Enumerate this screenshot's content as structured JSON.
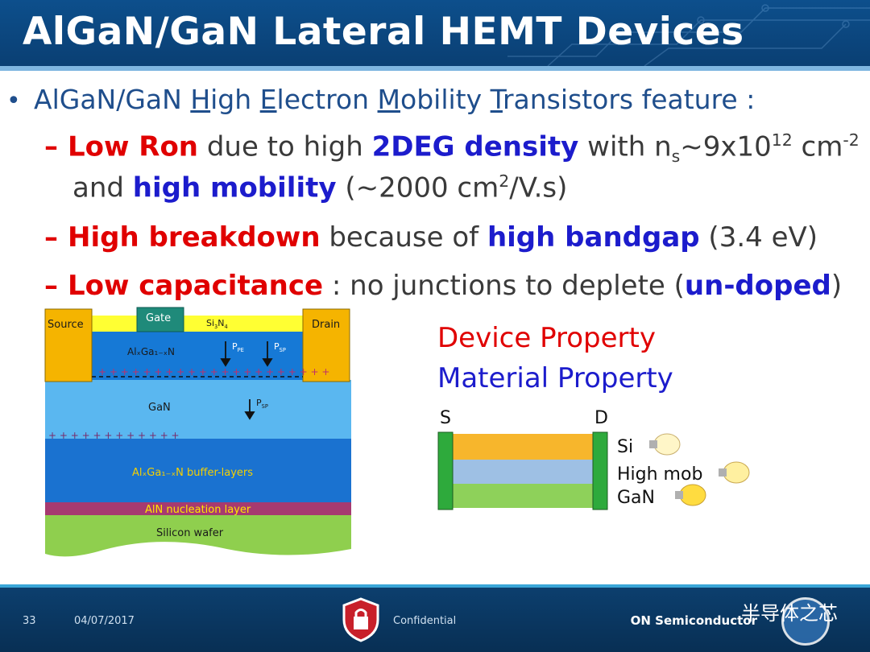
{
  "title": "AlGaN/GaN Lateral HEMT Devices",
  "bullets": {
    "intro_pre": "AlGaN/GaN ",
    "intro_h": "H",
    "intro_igh": "igh ",
    "intro_e": "E",
    "intro_lectron": "lectron ",
    "intro_m": "M",
    "intro_obility": "obility ",
    "intro_t": "T",
    "intro_rest": "ransistors feature :",
    "s1_red": "Low Ron",
    "s1_mid": " due to high ",
    "s1_blue": "2DEG density",
    "s1_with": " with n",
    "s1_sub": "s",
    "s1_tilde": "~9x10",
    "s1_exp": "12",
    "s1_unit": " cm",
    "s1_unitexp": "-2",
    "s1b_and": "and ",
    "s1b_blue": "high mobility",
    "s1b_rest": " (~2000 cm",
    "s1b_exp": "2",
    "s1b_end": "/V.s)",
    "s2_red": "High breakdown",
    "s2_mid": " because of ",
    "s2_blue": "high bandgap",
    "s2_end": " (3.4 eV)",
    "s3_red": "Low capacitance",
    "s3_mid": " : no junctions to deplete (",
    "s3_blue": "un-doped",
    "s3_end": ")",
    "dash": "–",
    "dot": "•"
  },
  "diagram": {
    "source": "Source",
    "gate": "Gate",
    "drain": "Drain",
    "sin": "Si",
    "sin_sub1": "3",
    "sin_n": "N",
    "sin_sub2": "4",
    "algan": "AlₓGa₁₋ₓN",
    "ppe": "P",
    "ppe_sub": "PE",
    "psp": "P",
    "psp_sub": "SP",
    "gan": "GaN",
    "psp2": "P",
    "psp2_sub": "SP",
    "buffer": "AlₓGa₁₋ₓN buffer-layers",
    "aln": "AlN nucleation layer",
    "si": "Silicon wafer"
  },
  "properties": {
    "device": "Device Property",
    "material": "Material Property"
  },
  "mini_stack": {
    "s": "S",
    "d": "D",
    "si": "Si",
    "high_mob": "High mob",
    "gan": "GaN"
  },
  "footer": {
    "page": "33",
    "date": "04/07/2017",
    "confidential": "Confidential",
    "brand": "ON Semiconductor",
    "watermark": "半导体之芯"
  },
  "colors": {
    "title_bg": "#0d4f8c",
    "red": "#e00000",
    "blue": "#1c1ccc",
    "nitride": "#ffff33",
    "contact": "#f5b400",
    "algan": "#1679d6",
    "gan": "#5ab7f0",
    "buffer": "#1a72d0",
    "aln": "#a63a70",
    "si": "#8fcf4e"
  }
}
